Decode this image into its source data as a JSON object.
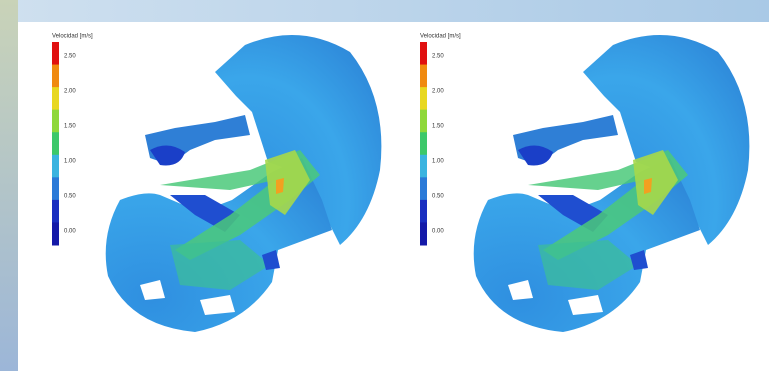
{
  "panels": [
    {
      "legend_title": "Velocidad [m/s]",
      "ticks": [
        "2.50",
        "2.00",
        "1.50",
        "1.00",
        "0.50",
        "0.00"
      ]
    },
    {
      "legend_title": "Velocidad [m/s]",
      "ticks": [
        "2.50",
        "2.00",
        "1.50",
        "1.00",
        "0.50",
        "0.00"
      ]
    }
  ]
}
